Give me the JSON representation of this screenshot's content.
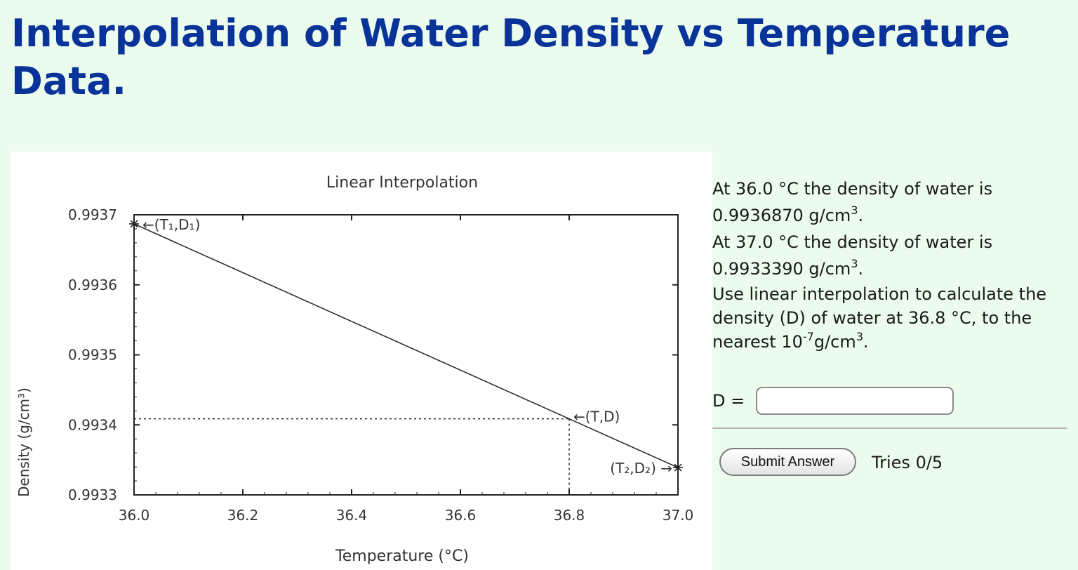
{
  "page": {
    "title": "Interpolation of Water Density vs Temperature Data."
  },
  "chart_data": {
    "type": "line",
    "title": "Linear Interpolation",
    "xlabel": "Temperature (°C)",
    "ylabel": "Density (g/cm³)",
    "xlim": [
      36.0,
      37.0
    ],
    "ylim": [
      0.9933,
      0.9937
    ],
    "x_ticks": [
      "36.0",
      "36.2",
      "36.4",
      "36.6",
      "36.8",
      "37.0"
    ],
    "y_ticks": [
      "0.9937",
      "0.9936",
      "0.9935",
      "0.9934",
      "0.9933"
    ],
    "x_tick_values": [
      36.0,
      36.2,
      36.4,
      36.6,
      36.8,
      37.0
    ],
    "y_tick_values": [
      0.9937,
      0.9936,
      0.9935,
      0.9934,
      0.9933
    ],
    "grid": false,
    "series": [
      {
        "x": [
          36.0,
          37.0
        ],
        "y": [
          0.993687,
          0.993339
        ]
      }
    ],
    "interpolated_point": {
      "x": 36.8,
      "y": 0.9934086
    },
    "annotations": {
      "point1": "←(T₁,D₁)",
      "point_target": "←(T,D)",
      "point2": "(T₂,D₂) →"
    }
  },
  "question": {
    "line1_prefix": "At 36.0 °C the density of water is",
    "line1_value": "0.9936870 g/cm",
    "line1_sup": "3",
    "line1_end": ".",
    "line2_prefix": "At 37.0 °C the density of water is",
    "line2_value": "0.9933390 g/cm",
    "line2_sup": "3",
    "line2_end": ".",
    "line3": "Use linear interpolation to calculate the density (D) of water at 36.8 °C, to the nearest 10",
    "line3_sup": "-7",
    "line3_unit": "g/cm",
    "line3_unit_sup": "3",
    "line3_end": "."
  },
  "answer": {
    "label": "D =",
    "value": "",
    "placeholder": ""
  },
  "submit": {
    "label": "Submit Answer"
  },
  "tries": {
    "text": "Tries 0/5"
  }
}
